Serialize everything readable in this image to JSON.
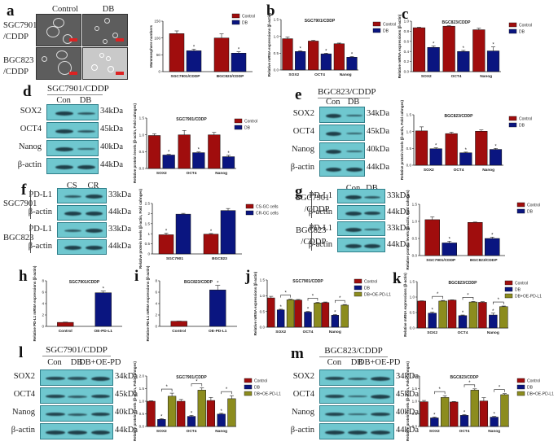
{
  "colors": {
    "control": "#a00d0d",
    "db": "#0a1580",
    "oe": "#8c8c1e",
    "blot_bg": "#6fc7cf",
    "band": "#1f3f49"
  },
  "panels": {
    "a": {
      "label": "a",
      "col_labels": [
        "Control",
        "DB"
      ],
      "row_labels": [
        "SGC7901\n/CDDP",
        "BGC823\n/CDDP"
      ]
    },
    "d": {
      "label": "d",
      "title": "SGC7901/CDDP",
      "lanes": [
        "Con",
        "DB"
      ],
      "rows": [
        {
          "name": "SOX2",
          "kda": "34kDa"
        },
        {
          "name": "OCT4",
          "kda": "45kDa"
        },
        {
          "name": "Nanog",
          "kda": "40kDa"
        },
        {
          "name": "β-actin",
          "kda": "44kDa"
        }
      ]
    },
    "e": {
      "label": "e",
      "title": "BGC823/CDDP",
      "lanes": [
        "Con",
        "DB"
      ],
      "rows": [
        {
          "name": "SOX2",
          "kda": "34kDa"
        },
        {
          "name": "OCT4",
          "kda": "45kDa"
        },
        {
          "name": "Nanog",
          "kda": "40kDa"
        },
        {
          "name": "β-actin",
          "kda": "44kDa"
        }
      ]
    },
    "f": {
      "label": "f",
      "lanes": [
        "CS",
        "CR"
      ],
      "groups": [
        "SGC7901",
        "BGC823"
      ],
      "rows": [
        {
          "name": "PD-L1",
          "kda": "33kDa"
        },
        {
          "name": "β-actin",
          "kda": "44kDa"
        },
        {
          "name": "PD-L1",
          "kda": "33kDa"
        },
        {
          "name": "β-actin",
          "kda": "44kDa"
        }
      ]
    },
    "g": {
      "label": "g",
      "lanes": [
        "Con",
        "DB"
      ],
      "groups": [
        "SGC7901\n/CDDP",
        "BGC823\n/CDDP"
      ],
      "rows": [
        {
          "name": "PD-L1",
          "kda": "33kDa"
        },
        {
          "name": "β-actin",
          "kda": "44kDa"
        },
        {
          "name": "PD-L1",
          "kda": "33kDa"
        },
        {
          "name": "β-actin",
          "kda": "44kDa"
        }
      ]
    },
    "l": {
      "label": "l",
      "title": "SGC7901/CDDP",
      "lanes": [
        "Con",
        "DB",
        "DB+OE-PD"
      ],
      "rows": [
        {
          "name": "SOX2",
          "kda": "34kDa"
        },
        {
          "name": "OCT4",
          "kda": "45kDa"
        },
        {
          "name": "Nanog",
          "kda": "40kDa"
        },
        {
          "name": "β-actin",
          "kda": "44kDa"
        }
      ]
    },
    "m": {
      "label": "m",
      "title": "BGC823/CDDP",
      "lanes": [
        "Con",
        "DB",
        "DB+OE-PD"
      ],
      "rows": [
        {
          "name": "SOX2",
          "kda": "34kDa"
        },
        {
          "name": "OCT4",
          "kda": "45kDa"
        },
        {
          "name": "Nanog",
          "kda": "40kDa"
        },
        {
          "name": "β-actin",
          "kda": "44kDa"
        }
      ]
    },
    "b": {
      "label": "b"
    },
    "c": {
      "label": "c"
    },
    "h": {
      "label": "h"
    },
    "i": {
      "label": "i"
    },
    "j": {
      "label": "j"
    },
    "k": {
      "label": "k"
    }
  },
  "chart_data": [
    {
      "id": "a",
      "type": "bar",
      "title": "",
      "ylabel": "Mammosphere numbers",
      "xlabel": "",
      "ylim": [
        0,
        150
      ],
      "yticks": [
        0,
        50,
        100,
        150
      ],
      "categories": [
        "SGC7901/CDDP",
        "BGC823/CDDP"
      ],
      "series": [
        {
          "name": "Control",
          "values": [
            113,
            100
          ],
          "errors": [
            8,
            12
          ]
        },
        {
          "name": "DB",
          "values": [
            62,
            55
          ],
          "errors": [
            5,
            4
          ]
        }
      ],
      "significance": [
        "*",
        "*"
      ],
      "legend": "top-right"
    },
    {
      "id": "b",
      "type": "bar",
      "title": "SGC7901/CDDP",
      "ylabel": "Relative mRNA expressions (β-actin)",
      "ylim": [
        0,
        1.5
      ],
      "yticks": [
        0.0,
        0.5,
        1.0,
        1.5
      ],
      "categories": [
        "SOX2",
        "OCT4",
        "Nanog"
      ],
      "series": [
        {
          "name": "Control",
          "values": [
            0.93,
            0.86,
            0.78
          ],
          "errors": [
            0.05,
            0.02,
            0.02
          ]
        },
        {
          "name": "DB",
          "values": [
            0.55,
            0.48,
            0.38
          ],
          "errors": [
            0.02,
            0.02,
            0.02
          ]
        }
      ],
      "significance": [
        "*",
        "*",
        "*"
      ],
      "legend": "top-right"
    },
    {
      "id": "c",
      "type": "bar",
      "title": "BGC823/CDDP",
      "ylabel": "Relative mRNA expressions (β-actin)",
      "ylim": [
        0,
        1.0
      ],
      "yticks": [
        0.0,
        0.2,
        0.4,
        0.6,
        0.8,
        1.0
      ],
      "categories": [
        "SOX2",
        "OCT4",
        "Nanog"
      ],
      "series": [
        {
          "name": "Control",
          "values": [
            0.87,
            0.9,
            0.83
          ],
          "errors": [
            0.01,
            0.01,
            0.03
          ]
        },
        {
          "name": "DB",
          "values": [
            0.48,
            0.4,
            0.41
          ],
          "errors": [
            0.03,
            0.02,
            0.08
          ]
        }
      ],
      "significance": [
        "*",
        "*",
        "*"
      ],
      "legend": "top-right"
    },
    {
      "id": "d",
      "type": "bar",
      "title": "SGC7901/CDDP",
      "ylabel": "Relative protein levels (β-actin, Fold cahnges)",
      "ylim": [
        0,
        1.5
      ],
      "yticks": [
        0.0,
        0.5,
        1.0,
        1.5
      ],
      "categories": [
        "SOX2",
        "OCT4",
        "Nanog"
      ],
      "series": [
        {
          "name": "Control",
          "values": [
            0.98,
            1.0,
            1.0
          ],
          "errors": [
            0.05,
            0.13,
            0.07
          ]
        },
        {
          "name": "DB",
          "values": [
            0.4,
            0.47,
            0.35
          ],
          "errors": [
            0.02,
            0.02,
            0.04
          ]
        }
      ],
      "significance": [
        "*",
        "*",
        "*"
      ],
      "legend": "top-right"
    },
    {
      "id": "e",
      "type": "bar",
      "title": "BGC823/CDDP",
      "ylabel": "Relative protein levels (β-actin, Fold cahnges)",
      "ylim": [
        0,
        1.5
      ],
      "yticks": [
        0.0,
        0.5,
        1.0,
        1.5
      ],
      "categories": [
        "SOX2",
        "OCT4",
        "Nanog"
      ],
      "series": [
        {
          "name": "Control",
          "values": [
            1.02,
            0.94,
            1.01
          ],
          "errors": [
            0.12,
            0.04,
            0.04
          ]
        },
        {
          "name": "DB",
          "values": [
            0.49,
            0.37,
            0.47
          ],
          "errors": [
            0.03,
            0.02,
            0.03
          ]
        }
      ],
      "significance": [
        "*",
        "*",
        "*"
      ],
      "legend": "top-right"
    },
    {
      "id": "f",
      "type": "bar",
      "title": "",
      "ylabel": "Relative protein levels (β-actin, Fold cahnges)",
      "ylim": [
        0,
        2.5
      ],
      "yticks": [
        0.0,
        0.5,
        1.0,
        1.5,
        2.0,
        2.5
      ],
      "categories": [
        "SGC7901",
        "BGC823"
      ],
      "series": [
        {
          "name": "CS-GC cells",
          "values": [
            0.95,
            0.98
          ],
          "errors": [
            0.08,
            0.03
          ]
        },
        {
          "name": "CR-GC cells",
          "values": [
            1.97,
            2.15
          ],
          "errors": [
            0.04,
            0.1
          ]
        }
      ],
      "significance": [
        "*",
        "*"
      ],
      "significance_on": "CS-GC cells",
      "legend": "top-right"
    },
    {
      "id": "g",
      "type": "bar",
      "title": "",
      "ylabel": "Relative protein levels (β-actin, Fold cahnges)",
      "ylim": [
        0,
        1.5
      ],
      "yticks": [
        0.0,
        0.5,
        1.0,
        1.5
      ],
      "categories": [
        "SGC7901/CDDP",
        "BGC823/CDDP"
      ],
      "series": [
        {
          "name": "Control",
          "values": [
            1.05,
            0.97
          ],
          "errors": [
            0.08,
            0.01
          ]
        },
        {
          "name": "DB",
          "values": [
            0.37,
            0.5
          ],
          "errors": [
            0.05,
            0.04
          ]
        }
      ],
      "significance": [
        "*",
        "*"
      ],
      "legend": "top-right"
    },
    {
      "id": "h",
      "type": "bar",
      "title": "SGC7901/CDDP",
      "ylabel": "Relative PD-L1 mRNA expressions (β-actin)",
      "ylim": [
        0,
        8
      ],
      "yticks": [
        0,
        2,
        4,
        6,
        8
      ],
      "categories": [
        "Control",
        "OE-PD-L1"
      ],
      "series": [
        {
          "name": "",
          "values": [
            0.7,
            5.9
          ],
          "errors": [
            0.05,
            0.3
          ],
          "colors": [
            "control",
            "db"
          ]
        }
      ],
      "significance": [
        "",
        "*"
      ],
      "legend": "none"
    },
    {
      "id": "i",
      "type": "bar",
      "title": "BGC823/CDDP",
      "ylabel": "Relative PD-L1 mRNA expressions (β-actin)",
      "ylim": [
        0,
        8
      ],
      "yticks": [
        0,
        2,
        4,
        6,
        8
      ],
      "categories": [
        "Control",
        "OE-PD-L1"
      ],
      "series": [
        {
          "name": "",
          "values": [
            0.9,
            6.4
          ],
          "errors": [
            0.02,
            0.8
          ],
          "colors": [
            "control",
            "db"
          ]
        }
      ],
      "significance": [
        "",
        "*"
      ],
      "legend": "none"
    },
    {
      "id": "j",
      "type": "bar",
      "title": "SGC7901/CDDP",
      "ylabel": "Relative mRNA expressions (β-actin)",
      "ylim": [
        0,
        1.5
      ],
      "yticks": [
        0.0,
        0.5,
        1.0,
        1.5
      ],
      "categories": [
        "SOX2",
        "OCT4",
        "Nanog"
      ],
      "series": [
        {
          "name": "Control",
          "values": [
            0.93,
            0.86,
            0.78
          ],
          "errors": [
            0.05,
            0.02,
            0.02
          ]
        },
        {
          "name": "DB",
          "values": [
            0.55,
            0.48,
            0.38
          ],
          "errors": [
            0.02,
            0.02,
            0.02
          ]
        },
        {
          "name": "DB+OE-PD-L1",
          "values": [
            0.87,
            0.77,
            0.7
          ],
          "errors": [
            0.02,
            0.02,
            0.02
          ]
        }
      ],
      "significance": [
        "*",
        "*",
        "*"
      ],
      "brackets": true,
      "legend": "top-right"
    },
    {
      "id": "k",
      "type": "bar",
      "title": "BGC823/CDDP",
      "ylabel": "Relative mRNA expressions (β-actin)",
      "ylim": [
        0,
        1.5
      ],
      "yticks": [
        0.0,
        0.5,
        1.0,
        1.5
      ],
      "categories": [
        "SOX2",
        "OCT4",
        "Nanog"
      ],
      "series": [
        {
          "name": "Control",
          "values": [
            0.87,
            0.9,
            0.83
          ],
          "errors": [
            0.01,
            0.01,
            0.02
          ]
        },
        {
          "name": "DB",
          "values": [
            0.48,
            0.4,
            0.42
          ],
          "errors": [
            0.03,
            0.02,
            0.06
          ]
        },
        {
          "name": "DB+OE-PD-L1",
          "values": [
            0.87,
            0.84,
            0.69
          ],
          "errors": [
            0.02,
            0.02,
            0.02
          ]
        }
      ],
      "significance": [
        "*",
        "*",
        "*"
      ],
      "brackets": true,
      "legend": "top-right"
    },
    {
      "id": "l",
      "type": "bar",
      "title": "SGC7901/CDDP",
      "ylabel": "Relative protein levels (β-actin, Fold cahnges)",
      "ylim": [
        0,
        2.0
      ],
      "yticks": [
        0.0,
        0.5,
        1.0,
        1.5,
        2.0
      ],
      "categories": [
        "SOX2",
        "OCT4",
        "Nanog"
      ],
      "series": [
        {
          "name": "Control",
          "values": [
            1.0,
            1.0,
            1.03
          ],
          "errors": [
            0.02,
            0.07,
            0.12
          ]
        },
        {
          "name": "DB",
          "values": [
            0.28,
            0.4,
            0.49
          ],
          "errors": [
            0.03,
            0.04,
            0.03
          ]
        },
        {
          "name": "DB+OE-PD-L1",
          "values": [
            1.2,
            1.44,
            1.1
          ],
          "errors": [
            0.12,
            0.09,
            0.12
          ]
        }
      ],
      "significance": [
        "*",
        "*",
        "*"
      ],
      "brackets": true,
      "legend": "top-right"
    },
    {
      "id": "m",
      "type": "bar",
      "title": "BGC823/CDDP",
      "ylabel": "Relative protein levels (β-actin, Fold cahnges)",
      "ylim": [
        0,
        2.0
      ],
      "yticks": [
        0.0,
        0.5,
        1.0,
        1.5,
        2.0
      ],
      "categories": [
        "SOX2",
        "OCT4",
        "Nanog"
      ],
      "series": [
        {
          "name": "Control",
          "values": [
            0.98,
            0.97,
            1.01
          ],
          "errors": [
            0.05,
            0.02,
            0.13
          ]
        },
        {
          "name": "DB",
          "values": [
            0.34,
            0.44,
            0.37
          ],
          "errors": [
            0.03,
            0.03,
            0.03
          ]
        },
        {
          "name": "DB+OE-PD-L1",
          "values": [
            1.15,
            1.44,
            1.26
          ],
          "errors": [
            0.07,
            0.05,
            0.04
          ]
        }
      ],
      "significance": [
        "*",
        "*",
        "*"
      ],
      "brackets": true,
      "legend": "top-right"
    }
  ]
}
